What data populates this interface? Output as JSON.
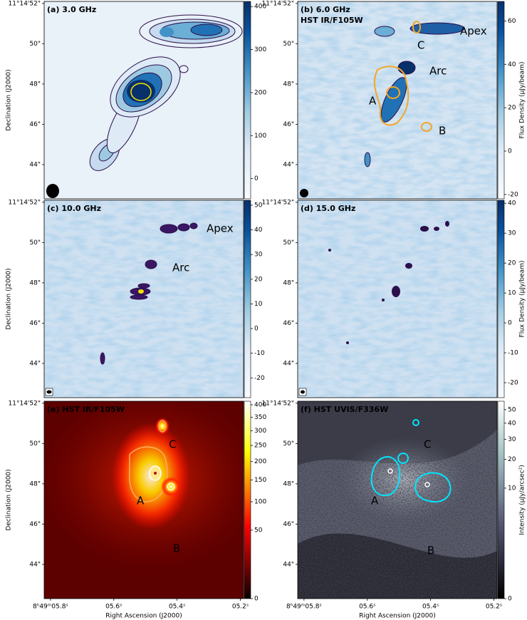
{
  "chart_data": [
    {
      "type": "image",
      "panel_label": "(a) 3.0 GHz",
      "label_color": "#000000",
      "ylabel": "Declination (J2000)",
      "ylim": [
        42.3,
        52.1
      ],
      "yticks": [
        {
          "value": 52,
          "label": "11°14'52\""
        },
        {
          "value": 50,
          "label": "50\""
        },
        {
          "value": 48,
          "label": "48\""
        },
        {
          "value": 46,
          "label": "46\""
        },
        {
          "value": 44,
          "label": "44\""
        }
      ],
      "colorbar": {
        "colormap": "Blues",
        "stretch": "linear",
        "clim": [
          -47,
          412
        ],
        "ticks": [
          0,
          100,
          200,
          300,
          400
        ]
      }
    },
    {
      "type": "image",
      "panel_label": "(b) 6.0 GHz",
      "label_color": "#000000",
      "overlay_label": {
        "text": "HST IR/F105W",
        "color": "#f5a623"
      },
      "annotations": [
        {
          "text": "Apex",
          "color": "#e8202a"
        },
        {
          "text": "Arc",
          "color": "#e8202a"
        },
        {
          "text": "A",
          "color": "#f5a623"
        },
        {
          "text": "B",
          "color": "#f5a623"
        },
        {
          "text": "C",
          "color": "#f5a623"
        }
      ],
      "ylim": [
        42.3,
        52.1
      ],
      "yticks": [
        {
          "value": 52,
          "label": "11°14'52\""
        },
        {
          "value": 50,
          "label": "50\""
        },
        {
          "value": 48,
          "label": "48\""
        },
        {
          "value": 46,
          "label": "46\""
        },
        {
          "value": 44,
          "label": "44\""
        }
      ],
      "colorbar": {
        "colormap": "Blues",
        "stretch": "linear",
        "clim": [
          -22,
          69
        ],
        "ticks": [
          -20,
          0,
          20,
          40,
          60
        ],
        "label": "Flux Density (μJy/beam)"
      }
    },
    {
      "type": "image",
      "panel_label": "(c) 10.0 GHz",
      "label_color": "#000000",
      "ylabel": "Declination (J2000)",
      "annotations": [
        {
          "text": "Apex",
          "color": "#e8202a"
        },
        {
          "text": "Arc",
          "color": "#e8202a"
        }
      ],
      "ylim": [
        42.3,
        52.1
      ],
      "yticks": [
        {
          "value": 52,
          "label": "11°14'52\""
        },
        {
          "value": 50,
          "label": "50\""
        },
        {
          "value": 48,
          "label": "48\""
        },
        {
          "value": 46,
          "label": "46\""
        },
        {
          "value": 44,
          "label": "44\""
        }
      ],
      "colorbar": {
        "colormap": "Blues",
        "stretch": "linear",
        "clim": [
          -28,
          52
        ],
        "ticks": [
          -20,
          -10,
          0,
          10,
          20,
          30,
          40,
          50
        ]
      }
    },
    {
      "type": "image",
      "panel_label": "(d) 15.0 GHz",
      "label_color": "#000000",
      "ylim": [
        42.3,
        52.1
      ],
      "yticks": [
        {
          "value": 52,
          "label": "11°14'52\""
        },
        {
          "value": 50,
          "label": "50\""
        },
        {
          "value": 48,
          "label": "48\""
        },
        {
          "value": 46,
          "label": "46\""
        },
        {
          "value": 44,
          "label": "44\""
        }
      ],
      "colorbar": {
        "colormap": "Blues",
        "stretch": "linear",
        "clim": [
          -25,
          41
        ],
        "ticks": [
          -20,
          -10,
          0,
          10,
          20,
          30,
          40
        ],
        "label": "Flux Density (μJy/beam)"
      }
    },
    {
      "type": "image",
      "panel_label": "(e) HST IR/F105W",
      "label_color": "#f5a623",
      "ylabel": "Declination (J2000)",
      "xlabel": "Right Ascension (J2000)",
      "annotations": [
        {
          "text": "A",
          "color": "#ffffff"
        },
        {
          "text": "B",
          "color": "#ffffff"
        },
        {
          "text": "C",
          "color": "#ffffff"
        }
      ],
      "xlim": [
        5.82,
        5.19
      ],
      "xticks": [
        {
          "value": 5.8,
          "label": "8ʰ49ᵐ05.8ˢ"
        },
        {
          "value": 5.6,
          "label": "05.6ˢ"
        },
        {
          "value": 5.4,
          "label": "05.4ˢ"
        },
        {
          "value": 5.2,
          "label": "05.2ˢ"
        }
      ],
      "ylim": [
        42.3,
        52.1
      ],
      "yticks": [
        {
          "value": 52,
          "label": "11°14'52\""
        },
        {
          "value": 50,
          "label": "50\""
        },
        {
          "value": 48,
          "label": "48\""
        },
        {
          "value": 46,
          "label": "46\""
        },
        {
          "value": 44,
          "label": "44\""
        }
      ],
      "colorbar": {
        "colormap": "hot",
        "stretch": "sqrt",
        "clim": [
          0,
          415
        ],
        "ticks": [
          0,
          50,
          100,
          150,
          200,
          250,
          300,
          350,
          400
        ]
      }
    },
    {
      "type": "image",
      "panel_label": "(f) HST UVIS/F336W",
      "label_color": "#00e5ff",
      "xlabel": "Right Ascension (J2000)",
      "annotations": [
        {
          "text": "A",
          "color": "#ffffff"
        },
        {
          "text": "B",
          "color": "#ffffff"
        },
        {
          "text": "C",
          "color": "#ffffff"
        }
      ],
      "xlim": [
        5.82,
        5.19
      ],
      "xticks": [
        {
          "value": 5.8,
          "label": "8ʰ49ᵐ05.8ˢ"
        },
        {
          "value": 5.6,
          "label": "05.6ˢ"
        },
        {
          "value": 5.4,
          "label": "05.4ˢ"
        },
        {
          "value": 5.2,
          "label": "05.2ˢ"
        }
      ],
      "ylim": [
        42.3,
        52.1
      ],
      "yticks": [
        {
          "value": 52,
          "label": "11°14'52\""
        },
        {
          "value": 50,
          "label": "50\""
        },
        {
          "value": 48,
          "label": "48\""
        },
        {
          "value": 46,
          "label": "46\""
        },
        {
          "value": 44,
          "label": "44\""
        }
      ],
      "colorbar": {
        "colormap": "bone",
        "stretch": "cbrt",
        "clim": [
          0,
          57
        ],
        "ticks": [
          0,
          10,
          20,
          30,
          40,
          50
        ],
        "label": "Intensity (μJy/arcsec²)"
      }
    }
  ]
}
